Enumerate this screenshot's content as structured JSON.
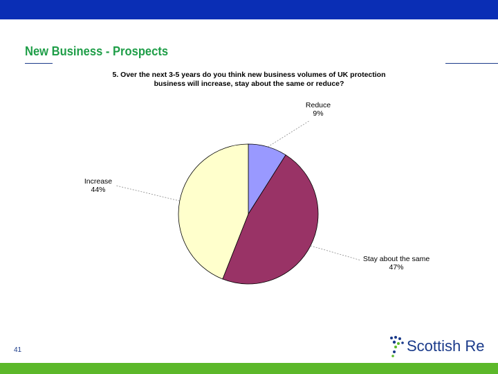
{
  "slide": {
    "title": "New Business - Prospects",
    "page_number": "41",
    "logo_text": "Scottish Re",
    "colors": {
      "top_bar": "#0a2eb5",
      "bottom_bar": "#5cb82a",
      "title": "#1f9e48"
    }
  },
  "chart_data": {
    "type": "pie",
    "title": "5. Over the next 3-5 years do you think new business volumes of UK protection business will increase, stay about the same or reduce?",
    "title_line1": "5. Over the next 3-5 years do you think new business volumes of UK protection",
    "title_line2": "business will increase, stay about the same or reduce?",
    "slices": [
      {
        "label": "Reduce",
        "value": 9,
        "value_label": "9%",
        "color": "#9999ff"
      },
      {
        "label": "Stay about the same",
        "value": 47,
        "value_label": "47%",
        "color": "#993366"
      },
      {
        "label": "Increase",
        "value": 44,
        "value_label": "44%",
        "color": "#ffffcc"
      }
    ]
  }
}
